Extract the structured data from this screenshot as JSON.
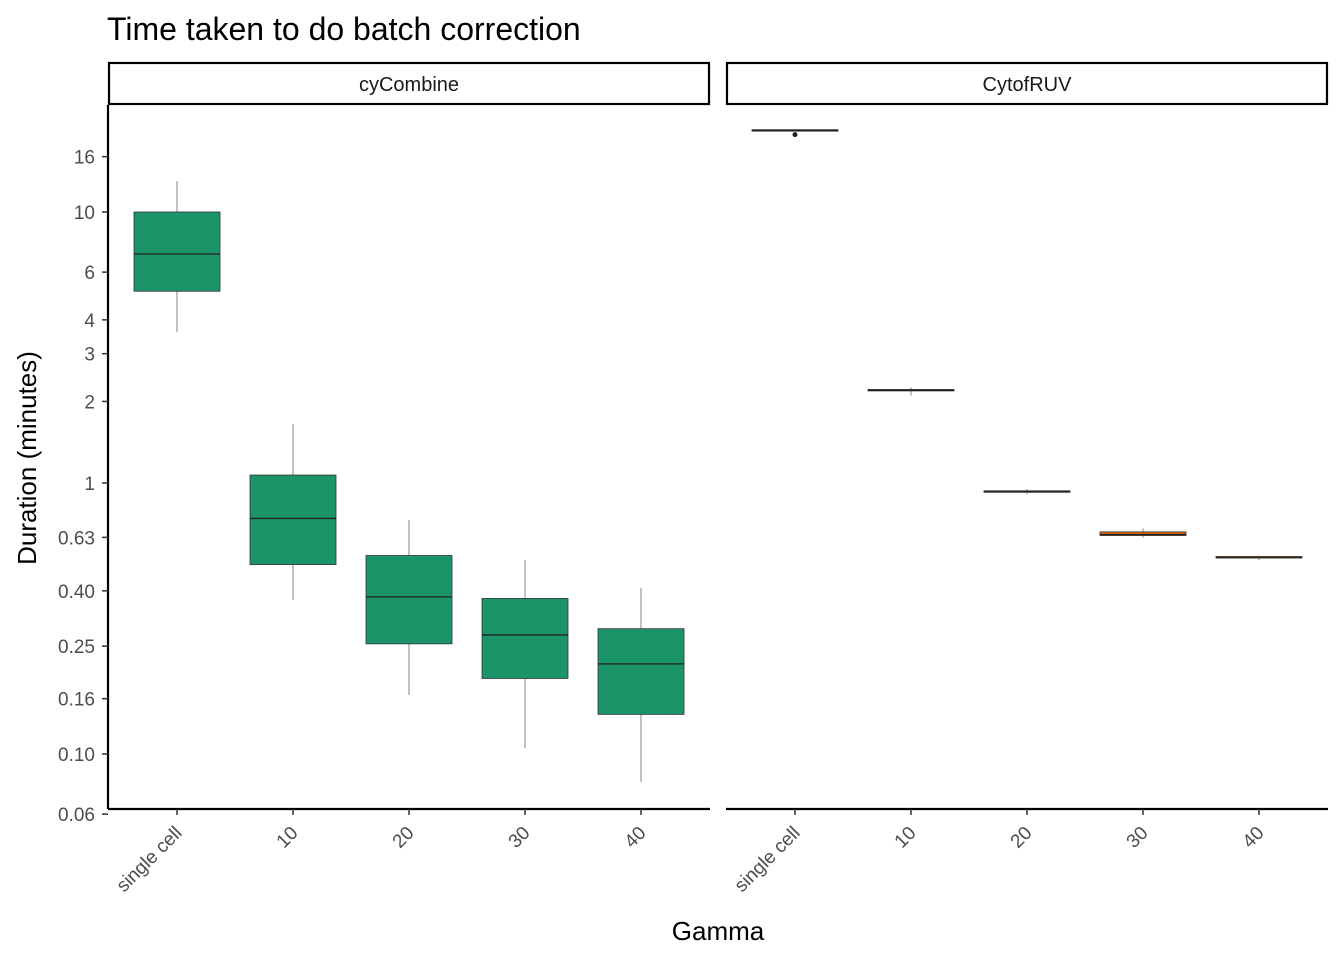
{
  "chart_data": {
    "type": "boxplot",
    "title": "Time taken to do batch correction",
    "xlabel": "Gamma",
    "ylabel": "Duration (minutes)",
    "y_scale": "log",
    "y_ticks": [
      "16",
      "10",
      "6",
      "4",
      "3",
      "2",
      "1",
      "0.63",
      "0.40",
      "0.25",
      "0.16",
      "0.10",
      "0.06"
    ],
    "categories": [
      "single cell",
      "10",
      "20",
      "30",
      "40"
    ],
    "grid": false,
    "legend": "none",
    "panels": [
      {
        "name": "cyCombine",
        "color": "#1b9467",
        "boxes": [
          {
            "category": "single cell",
            "min": 3.6,
            "q1": 5.1,
            "median": 7.0,
            "q3": 10.0,
            "max": 13.0,
            "outliers": []
          },
          {
            "category": "10",
            "min": 0.37,
            "q1": 0.5,
            "median": 0.74,
            "q3": 1.07,
            "max": 1.65,
            "outliers": []
          },
          {
            "category": "20",
            "min": 0.165,
            "q1": 0.255,
            "median": 0.38,
            "q3": 0.54,
            "max": 0.73,
            "outliers": []
          },
          {
            "category": "30",
            "min": 0.105,
            "q1": 0.19,
            "median": 0.275,
            "q3": 0.375,
            "max": 0.52,
            "outliers": []
          },
          {
            "category": "40",
            "min": 0.079,
            "q1": 0.14,
            "median": 0.215,
            "q3": 0.29,
            "max": 0.41,
            "outliers": []
          }
        ]
      },
      {
        "name": "CytofRUV",
        "color": "#d95f02",
        "boxes": [
          {
            "category": "single cell",
            "min": 20.0,
            "q1": 20.0,
            "median": 20.0,
            "q3": 20.0,
            "max": 20.0,
            "outliers": [
              19.3
            ]
          },
          {
            "category": "10",
            "min": 2.1,
            "q1": 2.2,
            "median": 2.2,
            "q3": 2.2,
            "max": 2.25,
            "outliers": []
          },
          {
            "category": "20",
            "min": 0.91,
            "q1": 0.93,
            "median": 0.93,
            "q3": 0.93,
            "max": 0.95,
            "outliers": []
          },
          {
            "category": "30",
            "min": 0.63,
            "q1": 0.64,
            "median": 0.645,
            "q3": 0.66,
            "max": 0.68,
            "outliers": []
          },
          {
            "category": "40",
            "min": 0.52,
            "q1": 0.53,
            "median": 0.53,
            "q3": 0.535,
            "max": 0.54,
            "outliers": []
          }
        ]
      }
    ]
  }
}
